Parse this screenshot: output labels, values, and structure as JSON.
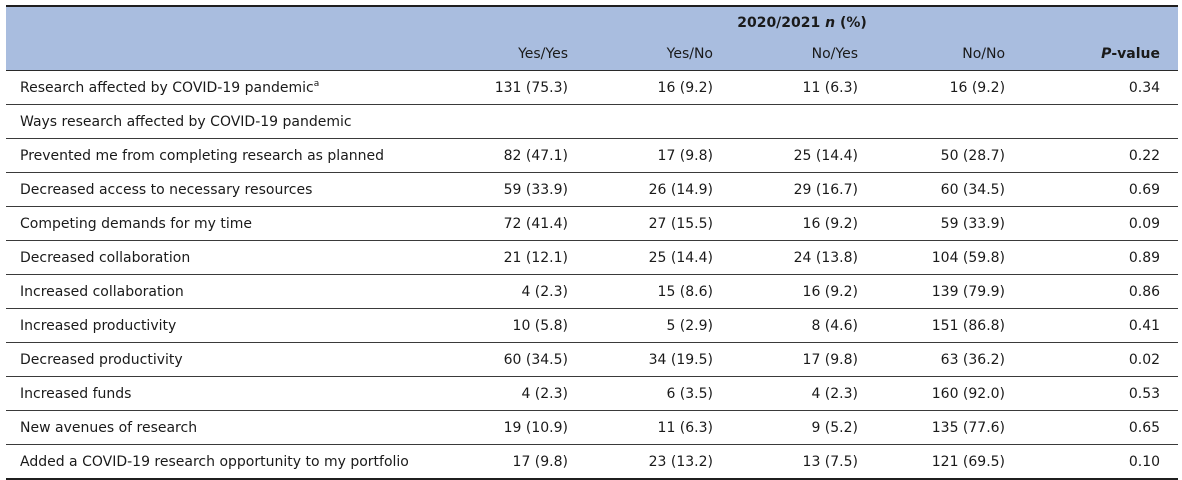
{
  "header": {
    "group_year": "2020/2021",
    "group_n": "n",
    "group_pct": "(%)",
    "columns": [
      "Yes/Yes",
      "Yes/No",
      "No/Yes",
      "No/No"
    ],
    "pvalue_p": "P",
    "pvalue_rest": "-value"
  },
  "rows": [
    {
      "label": "Research affected by COVID-19 pandemic",
      "sup": "a",
      "values": [
        "131 (75.3)",
        "16 (9.2)",
        "11 (6.3)",
        "16 (9.2)"
      ],
      "p": "0.34"
    },
    {
      "label": "Ways research affected by COVID-19 pandemic",
      "sup": "",
      "values": [
        "",
        "",
        "",
        ""
      ],
      "p": ""
    },
    {
      "label": "Prevented me from completing research as planned",
      "sup": "",
      "values": [
        "82 (47.1)",
        "17 (9.8)",
        "25 (14.4)",
        "50 (28.7)"
      ],
      "p": "0.22"
    },
    {
      "label": "Decreased access to necessary resources",
      "sup": "",
      "values": [
        "59 (33.9)",
        "26 (14.9)",
        "29 (16.7)",
        "60 (34.5)"
      ],
      "p": "0.69"
    },
    {
      "label": "Competing demands for my time",
      "sup": "",
      "values": [
        "72 (41.4)",
        "27 (15.5)",
        "16 (9.2)",
        "59 (33.9)"
      ],
      "p": "0.09"
    },
    {
      "label": "Decreased collaboration",
      "sup": "",
      "values": [
        "21 (12.1)",
        "25 (14.4)",
        "24 (13.8)",
        "104 (59.8)"
      ],
      "p": "0.89"
    },
    {
      "label": "Increased collaboration",
      "sup": "",
      "values": [
        "4 (2.3)",
        "15 (8.6)",
        "16 (9.2)",
        "139 (79.9)"
      ],
      "p": "0.86"
    },
    {
      "label": "Increased productivity",
      "sup": "",
      "values": [
        "10 (5.8)",
        "5 (2.9)",
        "8 (4.6)",
        "151 (86.8)"
      ],
      "p": "0.41"
    },
    {
      "label": "Decreased productivity",
      "sup": "",
      "values": [
        "60 (34.5)",
        "34 (19.5)",
        "17 (9.8)",
        "63 (36.2)"
      ],
      "p": "0.02"
    },
    {
      "label": "Increased funds",
      "sup": "",
      "values": [
        "4 (2.3)",
        "6 (3.5)",
        "4 (2.3)",
        "160 (92.0)"
      ],
      "p": "0.53"
    },
    {
      "label": "New avenues of research",
      "sup": "",
      "values": [
        "19 (10.9)",
        "11 (6.3)",
        "9 (5.2)",
        "135 (77.6)"
      ],
      "p": "0.65"
    },
    {
      "label": "Added a COVID-19 research opportunity to my portfolio",
      "sup": "",
      "values": [
        "17 (9.8)",
        "23 (13.2)",
        "13 (7.5)",
        "121 (69.5)"
      ],
      "p": "0.10"
    }
  ]
}
